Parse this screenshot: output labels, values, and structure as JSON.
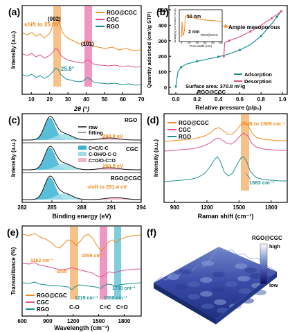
{
  "chart_data": [
    {
      "panel": "(a)",
      "type": "line",
      "xlabel": "2θ (°)",
      "ylabel": "Intensity (a.u.)",
      "xlim": [
        5,
        70
      ],
      "xticks": [
        10,
        20,
        30,
        40,
        50,
        60,
        70
      ],
      "legend": "top-right",
      "series": [
        {
          "name": "RGO@CGC",
          "color": "#f08a1c"
        },
        {
          "name": "CGC",
          "color": "#e4508a"
        },
        {
          "name": "RGO",
          "color": "#1b8f95"
        }
      ],
      "annotations": [
        "(002)",
        "(101)",
        "shift to 25.05°",
        "25.8°"
      ],
      "bands": [
        {
          "x": [
            24,
            27
          ],
          "color": "#f5a04a"
        },
        {
          "x": [
            40.5,
            43.5
          ],
          "color": "#e660a0"
        }
      ]
    },
    {
      "panel": "(b)",
      "type": "line",
      "xlabel": "Relative pressure (p/p₀)",
      "ylabel": "Quantity adsorbed (cm³/g STP)",
      "xlim": [
        0,
        1.0
      ],
      "ylim": [
        0,
        500
      ],
      "xticks": [
        0.0,
        0.2,
        0.4,
        0.6,
        0.8,
        1.0
      ],
      "yticks": [
        0,
        100,
        200,
        300,
        400,
        500
      ],
      "series": [
        {
          "name": "Adsorption",
          "color": "#1b8f95",
          "x": [
            0.0,
            0.02,
            0.05,
            0.1,
            0.2,
            0.3,
            0.4,
            0.5,
            0.6,
            0.7,
            0.8,
            0.9,
            0.95,
            0.99
          ],
          "y": [
            5,
            100,
            130,
            150,
            168,
            182,
            197,
            215,
            240,
            275,
            330,
            410,
            455,
            490
          ]
        },
        {
          "name": "Desorption",
          "color": "#e4508a",
          "x": [
            0.99,
            0.95,
            0.9,
            0.8,
            0.7,
            0.6,
            0.5,
            0.46,
            0.45
          ],
          "y": [
            490,
            470,
            445,
            400,
            360,
            325,
            300,
            290,
            200
          ]
        }
      ],
      "annotations": [
        "Ample mesoporous",
        "Surface area: 370.8 m²/g",
        "RGO@CGC"
      ],
      "inset": {
        "xlabel": "Pore width (nm)",
        "ylabel": "dV/dlog(w) pore volume (cm³/g)",
        "series_name": "RGO@CGC",
        "labels": [
          "10 nm",
          "2 nm"
        ],
        "xticks": [
          0,
          20,
          40,
          60,
          80,
          100
        ],
        "x": [
          0,
          2,
          4,
          6,
          8,
          10,
          15,
          20,
          40,
          60,
          80,
          100
        ],
        "y": [
          0.3,
          1.4,
          0.4,
          0.5,
          0.8,
          1.9,
          1.95,
          1.9,
          1.7,
          1.6,
          1.55,
          1.5
        ]
      }
    },
    {
      "panel": "(c)",
      "type": "line",
      "xlabel": "Binding energy (eV)",
      "ylabel": "Intensity (a.u.)",
      "xlim": [
        282,
        294
      ],
      "xticks": [
        282,
        285,
        288,
        291,
        294
      ],
      "subpanels": [
        "RGO",
        "CGC",
        "RGO@CGC"
      ],
      "legend_items": [
        {
          "name": "raw",
          "color": "#111111"
        },
        {
          "name": "fitting",
          "color": "#555555"
        },
        {
          "name": "C=C/C-C",
          "color": "#3ab4d4"
        },
        {
          "name": "C-OH/O-C-O",
          "color": "#9edde8"
        },
        {
          "name": "C=O/O-C=O",
          "color": "#f2b4cc"
        }
      ],
      "annotations": [
        "290.8 eV",
        "290.8 eV",
        "shift to 291.4 eV"
      ]
    },
    {
      "panel": "(d)",
      "type": "line",
      "xlabel": "Raman shift (cm⁻¹)",
      "ylabel": "Intensity (a.u.)",
      "xlim": [
        800,
        1950
      ],
      "xticks": [
        900,
        1200,
        1500,
        1800
      ],
      "legend": "top-left",
      "series": [
        {
          "name": "RGO@CGC",
          "color": "#f08a1c"
        },
        {
          "name": "CGC",
          "color": "#e4508a"
        },
        {
          "name": "RGO",
          "color": "#1b8f95"
        }
      ],
      "annotations": [
        "shift to 1589 cm⁻¹",
        "1583 cm⁻¹"
      ],
      "bands": [
        {
          "x": [
            1560,
            1610
          ],
          "color": "#f5a04a"
        }
      ]
    },
    {
      "panel": "(e)",
      "type": "line",
      "xlabel": "Wavelength (cm⁻¹)",
      "ylabel": "Transmittance (%)",
      "xlim": [
        600,
        2000
      ],
      "xticks": [
        600,
        900,
        1200,
        1500,
        1800
      ],
      "legend": "bottom-left",
      "series": [
        {
          "name": "RGO@CGC",
          "color": "#f08a1c"
        },
        {
          "name": "CGC",
          "color": "#e4508a"
        },
        {
          "name": "RGO",
          "color": "#1b8f95"
        }
      ],
      "annotations": [
        "1163 cm⁻¹",
        "shift",
        "1556 cm⁻¹",
        "1219 cm⁻¹",
        "1568 cm⁻¹",
        "1730 cm⁻¹"
      ],
      "bond_labels": [
        "C-O",
        "C=C",
        "C=O"
      ],
      "bands": [
        {
          "x": [
            1185,
            1245
          ],
          "color": "#f5a04a"
        },
        {
          "x": [
            1530,
            1590
          ],
          "color": "#e660a0"
        },
        {
          "x": [
            1705,
            1755
          ],
          "color": "#3ab4c8"
        }
      ]
    },
    {
      "panel": "(f)",
      "type": "heatmap",
      "title": "RGO@CGC",
      "colorbar": {
        "high": "high",
        "low": "low",
        "colors": [
          "#0a0a6a",
          "#3a4aa8",
          "#8aa0d8",
          "#ffffff"
        ]
      }
    }
  ]
}
